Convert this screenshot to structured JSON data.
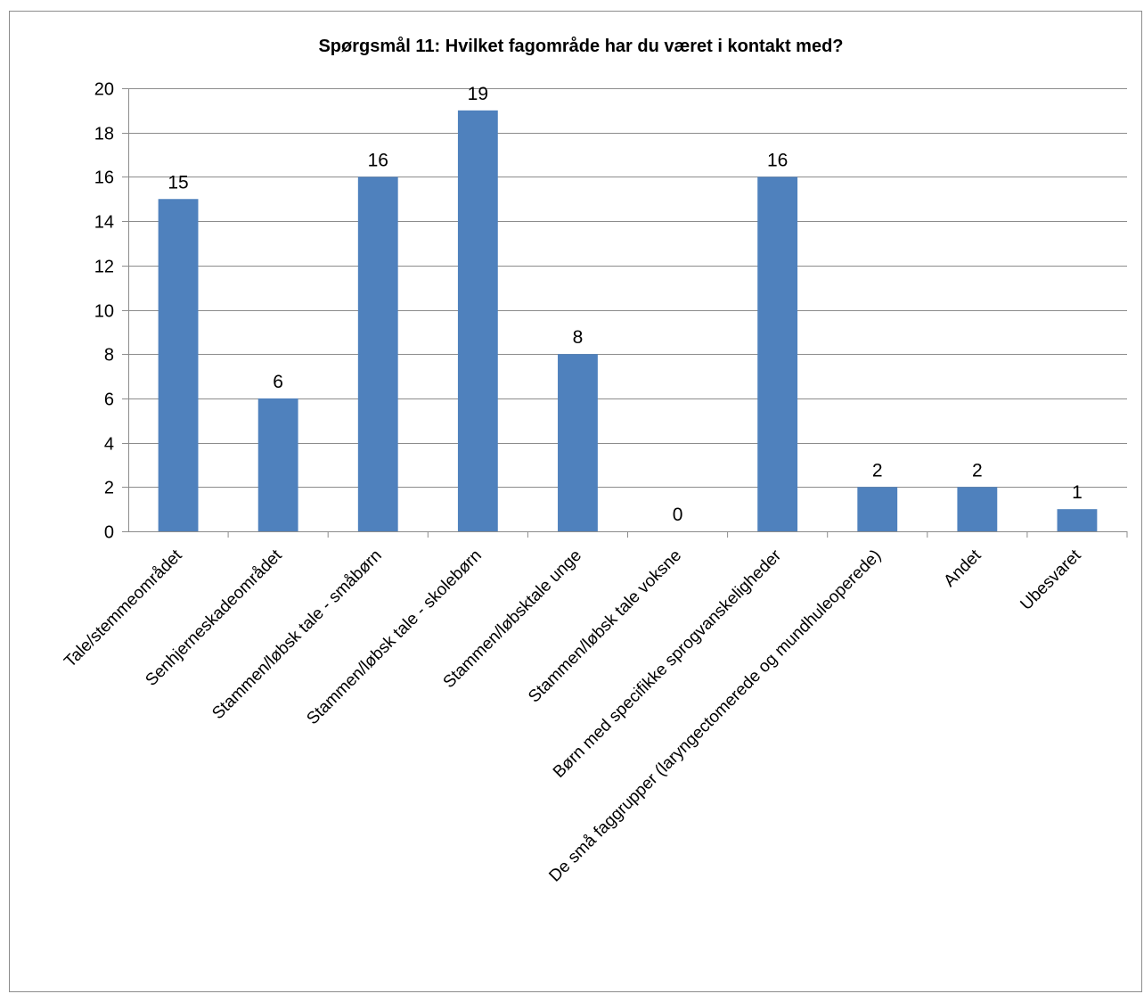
{
  "chart_data": {
    "type": "bar",
    "title": "Spørgsmål 11: Hvilket fagområde har du været i kontakt med?",
    "xlabel": "",
    "ylabel": "",
    "categories": [
      "Tale/stemmeområdet",
      "Senhjerneskadeområdet",
      "Stammen/løbsk tale - småbørn",
      "Stammen/løbsk tale - skolebørn",
      "Stammen/løbsktale unge",
      "Stammen/løbsk tale voksne",
      "Børn med specifikke sprogvanskeligheder",
      "De små faggrupper (laryngectomerede og mundhuleoperede)",
      "Andet",
      "Ubesvaret"
    ],
    "values": [
      15,
      6,
      16,
      19,
      8,
      0,
      16,
      2,
      2,
      1
    ],
    "ylim": [
      0,
      20
    ],
    "yticks": [
      0,
      2,
      4,
      6,
      8,
      10,
      12,
      14,
      16,
      18,
      20
    ],
    "grid": true,
    "legend": "none",
    "colors": {
      "bar": "#4F81BD",
      "gridline": "#8c8c8c",
      "axis": "#8c8c8c",
      "frame": "#8c8c8c"
    }
  }
}
